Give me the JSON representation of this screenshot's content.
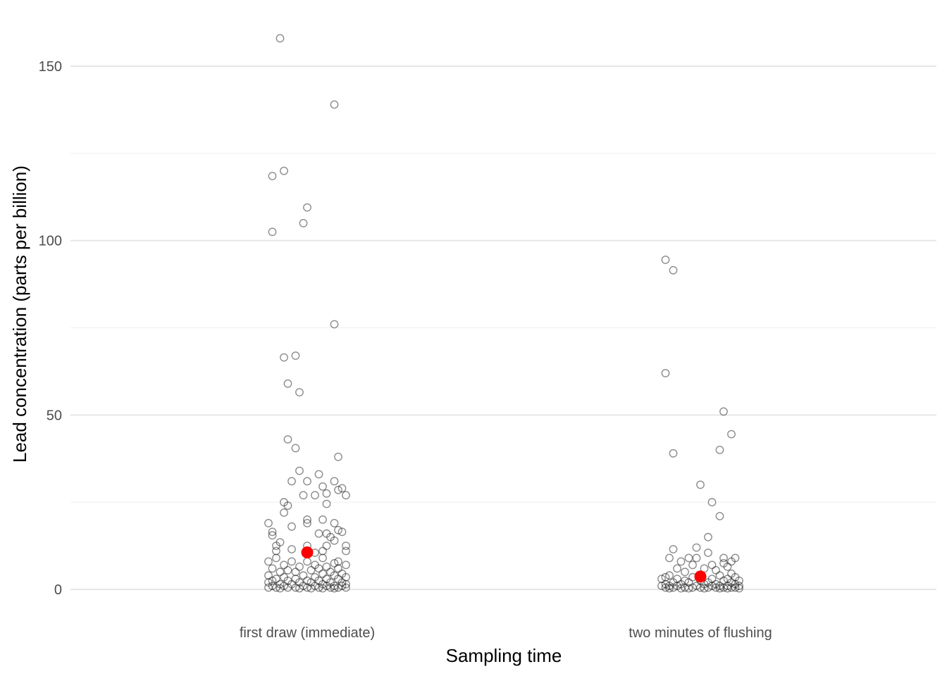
{
  "chart_data": {
    "type": "scatter",
    "xlabel": "Sampling time",
    "ylabel": "Lead concentration (parts per billion)",
    "categories": [
      "first draw (immediate)",
      "two minutes of flushing"
    ],
    "ylim": [
      -6,
      158
    ],
    "yticks": [
      0,
      50,
      100,
      150
    ],
    "grid": true,
    "colors": {
      "points": "#000000",
      "mean": "#ff0000"
    },
    "series": [
      {
        "category": "first draw (immediate)",
        "mean": 10.6,
        "points": [
          [
            -0.07,
            158
          ],
          [
            0.07,
            139
          ],
          [
            -0.09,
            118.5
          ],
          [
            -0.06,
            120
          ],
          [
            0,
            109.5
          ],
          [
            -0.09,
            102.5
          ],
          [
            -0.01,
            105
          ],
          [
            0.07,
            76
          ],
          [
            -0.06,
            66.5
          ],
          [
            -0.03,
            67
          ],
          [
            -0.05,
            59
          ],
          [
            -0.02,
            56.5
          ],
          [
            -0.05,
            43
          ],
          [
            -0.03,
            40.5
          ],
          [
            0.08,
            38
          ],
          [
            -0.02,
            34
          ],
          [
            0.03,
            33
          ],
          [
            0.0,
            31
          ],
          [
            -0.04,
            31
          ],
          [
            0.07,
            31
          ],
          [
            0.04,
            29.5
          ],
          [
            0.09,
            29
          ],
          [
            0.08,
            28.5
          ],
          [
            0.05,
            27.5
          ],
          [
            0.02,
            27
          ],
          [
            -0.01,
            27
          ],
          [
            0.1,
            27
          ],
          [
            -0.06,
            25
          ],
          [
            0.05,
            24.5
          ],
          [
            -0.05,
            24
          ],
          [
            -0.06,
            22
          ],
          [
            0.04,
            20
          ],
          [
            0.0,
            20
          ],
          [
            0.07,
            19
          ],
          [
            0.0,
            19
          ],
          [
            -0.1,
            19
          ],
          [
            -0.04,
            18
          ],
          [
            -0.09,
            16.5
          ],
          [
            0.05,
            16
          ],
          [
            0.08,
            17
          ],
          [
            0.09,
            16.5
          ],
          [
            0.03,
            16
          ],
          [
            -0.09,
            15.5
          ],
          [
            0.06,
            15
          ],
          [
            0.07,
            14
          ],
          [
            -0.07,
            13.5
          ],
          [
            0.1,
            12.5
          ],
          [
            0.05,
            12.5
          ],
          [
            0.0,
            12.5
          ],
          [
            -0.08,
            12.5
          ],
          [
            -0.04,
            11.5
          ],
          [
            0.04,
            11
          ],
          [
            -0.08,
            11
          ],
          [
            0.1,
            11
          ],
          [
            0.02,
            10.5
          ],
          [
            -0.08,
            9
          ],
          [
            0.04,
            9
          ],
          [
            0.08,
            8
          ],
          [
            -0.04,
            8
          ],
          [
            0.0,
            8
          ],
          [
            -0.1,
            8
          ],
          [
            0.07,
            7.5
          ],
          [
            -0.06,
            7
          ],
          [
            0.02,
            7
          ],
          [
            0.1,
            7
          ],
          [
            -0.02,
            6.5
          ],
          [
            0.05,
            6.5
          ],
          [
            0.08,
            6
          ],
          [
            -0.09,
            6
          ],
          [
            0.03,
            6
          ],
          [
            -0.05,
            5.5
          ],
          [
            0.01,
            5.5
          ],
          [
            -0.07,
            5
          ],
          [
            0.06,
            5
          ],
          [
            -0.03,
            5
          ],
          [
            0.09,
            4.5
          ],
          [
            0.04,
            4.5
          ],
          [
            -0.1,
            4
          ],
          [
            -0.01,
            4
          ],
          [
            0.07,
            4
          ],
          [
            -0.06,
            3.5
          ],
          [
            0.02,
            3.5
          ],
          [
            0.1,
            3.5
          ],
          [
            -0.08,
            3
          ],
          [
            0.05,
            3
          ],
          [
            -0.03,
            3
          ],
          [
            0.08,
            3
          ],
          [
            0.0,
            2.5
          ],
          [
            -0.09,
            2.5
          ],
          [
            0.03,
            2.5
          ],
          [
            -0.05,
            2.5
          ],
          [
            0.09,
            2
          ],
          [
            -0.02,
            2
          ],
          [
            0.06,
            2
          ],
          [
            -0.1,
            2
          ],
          [
            0.01,
            2
          ],
          [
            -0.07,
            1.5
          ],
          [
            0.04,
            1.5
          ],
          [
            0.1,
            1.5
          ],
          [
            -0.04,
            1.5
          ],
          [
            0.07,
            1
          ],
          [
            -0.09,
            1
          ],
          [
            0.02,
            1
          ],
          [
            -0.01,
            1
          ],
          [
            0.05,
            1
          ],
          [
            -0.06,
            1
          ],
          [
            0.09,
            1
          ],
          [
            -0.03,
            0.5
          ],
          [
            0.03,
            0.5
          ],
          [
            -0.08,
            0.5
          ],
          [
            0.08,
            0.5
          ],
          [
            0.0,
            0.5
          ],
          [
            -0.05,
            0.5
          ],
          [
            0.06,
            0.5
          ],
          [
            -0.1,
            0.5
          ],
          [
            0.1,
            0.5
          ],
          [
            0.01,
            0.3
          ],
          [
            -0.02,
            0.3
          ],
          [
            0.04,
            0.3
          ],
          [
            -0.07,
            0.3
          ],
          [
            0.07,
            0.3
          ]
        ]
      },
      {
        "category": "two minutes of flushing",
        "mean": 3.7,
        "points": [
          [
            -0.09,
            94.5
          ],
          [
            -0.07,
            91.5
          ],
          [
            -0.09,
            62
          ],
          [
            -0.07,
            39
          ],
          [
            0.06,
            51
          ],
          [
            0.08,
            44.5
          ],
          [
            0.05,
            40
          ],
          [
            0.0,
            30
          ],
          [
            0.03,
            25
          ],
          [
            0.05,
            21
          ],
          [
            0.02,
            15
          ],
          [
            -0.07,
            11.5
          ],
          [
            -0.01,
            12
          ],
          [
            0.06,
            9
          ],
          [
            0.09,
            9
          ],
          [
            -0.08,
            9
          ],
          [
            -0.03,
            9
          ],
          [
            -0.01,
            9
          ],
          [
            0.02,
            10.5
          ],
          [
            0.08,
            8
          ],
          [
            0.06,
            7.5
          ],
          [
            -0.05,
            8
          ],
          [
            0.03,
            7
          ],
          [
            -0.02,
            7
          ],
          [
            0.07,
            6.5
          ],
          [
            -0.06,
            6
          ],
          [
            0.01,
            6
          ],
          [
            0.04,
            5.5
          ],
          [
            -0.04,
            5
          ],
          [
            0.08,
            4.5
          ],
          [
            -0.08,
            4
          ],
          [
            0.0,
            4
          ],
          [
            0.05,
            4
          ],
          [
            -0.09,
            3.5
          ],
          [
            -0.02,
            3.5
          ],
          [
            0.09,
            3.5
          ],
          [
            0.03,
            3
          ],
          [
            -0.06,
            3
          ],
          [
            0.07,
            3
          ],
          [
            -0.1,
            3
          ],
          [
            0.0,
            2.5
          ],
          [
            -0.04,
            2.5
          ],
          [
            0.06,
            2.5
          ],
          [
            0.1,
            2.5
          ],
          [
            -0.07,
            2
          ],
          [
            0.02,
            2
          ],
          [
            0.08,
            2
          ],
          [
            -0.03,
            2
          ],
          [
            0.04,
            1.5
          ],
          [
            -0.09,
            1.5
          ],
          [
            0.01,
            1.5
          ],
          [
            -0.05,
            1.5
          ],
          [
            0.09,
            1.5
          ],
          [
            -0.01,
            1
          ],
          [
            0.05,
            1
          ],
          [
            -0.08,
            1
          ],
          [
            0.03,
            1
          ],
          [
            -0.06,
            1
          ],
          [
            0.07,
            1
          ],
          [
            0.1,
            1
          ],
          [
            -0.1,
            1
          ],
          [
            0.0,
            0.5
          ],
          [
            -0.04,
            0.5
          ],
          [
            0.04,
            0.5
          ],
          [
            -0.07,
            0.5
          ],
          [
            0.08,
            0.5
          ],
          [
            -0.02,
            0.5
          ],
          [
            0.06,
            0.5
          ],
          [
            -0.09,
            0.5
          ],
          [
            0.02,
            0.5
          ],
          [
            0.09,
            0.5
          ],
          [
            -0.05,
            0.3
          ],
          [
            0.01,
            0.3
          ],
          [
            0.05,
            0.3
          ],
          [
            -0.03,
            0.3
          ],
          [
            0.07,
            0.3
          ],
          [
            -0.08,
            0.3
          ],
          [
            0.1,
            0.3
          ]
        ]
      }
    ]
  }
}
